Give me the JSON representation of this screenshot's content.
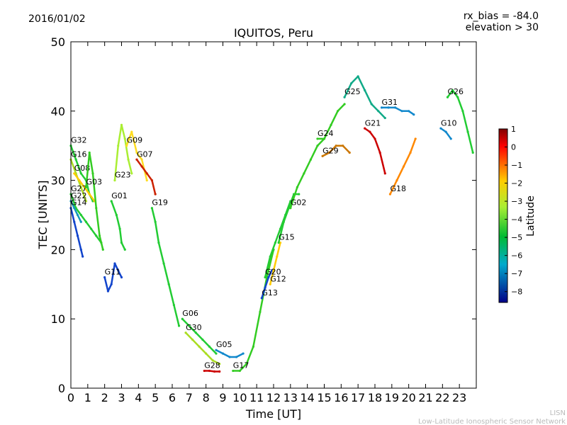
{
  "header": {
    "date": "2016/01/02",
    "bias": "rx_bias = -84.0",
    "elevation": "elevation > 30"
  },
  "footer": {
    "line1": "LISN",
    "line2": "Low-Latitude Ionospheric Sensor Network"
  },
  "chart_data": {
    "type": "scatter",
    "title": "IQUITOS, Peru",
    "xlabel": "Time [UT]",
    "ylabel": "TEC [UNITS]",
    "xlim": [
      0,
      24
    ],
    "ylim": [
      0,
      50
    ],
    "xticks": [
      "0",
      "1",
      "2",
      "3",
      "4",
      "5",
      "6",
      "7",
      "8",
      "9",
      "10",
      "11",
      "12",
      "13",
      "14",
      "15",
      "16",
      "17",
      "18",
      "19",
      "20",
      "21",
      "22",
      "23"
    ],
    "yticks": [
      "0",
      "10",
      "20",
      "30",
      "40",
      "50"
    ],
    "grid": false,
    "colorbar": {
      "label": "Latitude",
      "range": [
        -8.6,
        1
      ],
      "ticks": [
        "1",
        "0",
        "−1",
        "−2",
        "−3",
        "−4",
        "−5",
        "−6",
        "−7",
        "−8"
      ]
    },
    "series": [
      {
        "name": "G32",
        "color": "#22cc33",
        "x": [
          0.0,
          0.3,
          0.6,
          0.9,
          1.1,
          1.3
        ],
        "y": [
          35,
          33,
          31,
          30,
          28,
          27
        ]
      },
      {
        "name": "G16",
        "color": "#aadd22",
        "x": [
          0.0,
          0.3,
          0.6,
          0.9
        ],
        "y": [
          33,
          31,
          29,
          27
        ]
      },
      {
        "name": "G08",
        "color": "#ffcc00",
        "x": [
          0.2,
          0.5,
          0.8,
          1.1,
          1.4
        ],
        "y": [
          31,
          30,
          29,
          28,
          27
        ]
      },
      {
        "name": "G27",
        "color": "#22cc33",
        "x": [
          0.0,
          0.3,
          0.6,
          0.9,
          1.2,
          1.5,
          1.8
        ],
        "y": [
          28,
          26,
          25,
          24,
          23,
          22,
          21
        ]
      },
      {
        "name": "G22",
        "color": "#1199bb",
        "x": [
          0.0,
          0.2,
          0.4,
          0.6
        ],
        "y": [
          27,
          26,
          25,
          24
        ]
      },
      {
        "name": "G03",
        "color": "#33cc22",
        "x": [
          0.9,
          1.1,
          1.3,
          1.5,
          1.7,
          1.9
        ],
        "y": [
          29,
          34,
          31,
          26,
          22,
          20
        ]
      },
      {
        "name": "G14",
        "color": "#1144cc",
        "x": [
          0.0,
          0.2,
          0.4,
          0.6,
          0.7
        ],
        "y": [
          26,
          24,
          22,
          20,
          19
        ]
      },
      {
        "name": "G23",
        "color": "#aaee33",
        "x": [
          2.6,
          2.8,
          3.0,
          3.2,
          3.4,
          3.6
        ],
        "y": [
          30,
          35,
          38,
          36,
          33,
          31
        ]
      },
      {
        "name": "G09",
        "color": "#ffdd22",
        "x": [
          3.3,
          3.6,
          3.9,
          4.2,
          4.5
        ],
        "y": [
          35,
          37,
          34,
          33,
          30
        ]
      },
      {
        "name": "G07",
        "color": "#cc2200",
        "x": [
          3.9,
          4.2,
          4.5,
          4.8,
          5.0
        ],
        "y": [
          33,
          32,
          31,
          30,
          28
        ]
      },
      {
        "name": "G01",
        "color": "#22cc33",
        "x": [
          2.4,
          2.7,
          2.9,
          3.0,
          3.2
        ],
        "y": [
          27,
          25,
          23,
          21,
          20
        ]
      },
      {
        "name": "G11",
        "color": "#1144cc",
        "x": [
          2.0,
          2.2,
          2.4,
          2.6,
          2.8,
          3.0
        ],
        "y": [
          16,
          14,
          15,
          18,
          17,
          16
        ]
      },
      {
        "name": "G19",
        "color": "#22cc33",
        "x": [
          4.8,
          5.0,
          5.2,
          5.5,
          5.8,
          6.1,
          6.4
        ],
        "y": [
          26,
          24,
          21,
          18,
          15,
          12,
          9
        ]
      },
      {
        "name": "G06",
        "color": "#22cc33",
        "x": [
          6.6,
          7.0,
          7.4,
          7.8,
          8.2,
          8.6
        ],
        "y": [
          10,
          9,
          8,
          7,
          6,
          5
        ]
      },
      {
        "name": "G30",
        "color": "#aadd22",
        "x": [
          6.8,
          7.2,
          7.6,
          8.0,
          8.4,
          8.8
        ],
        "y": [
          8,
          7,
          6,
          5,
          4,
          3.5
        ]
      },
      {
        "name": "G28",
        "color": "#cc0000",
        "x": [
          7.9,
          8.2,
          8.5,
          8.8
        ],
        "y": [
          2.5,
          2.5,
          2.4,
          2.4
        ]
      },
      {
        "name": "G05",
        "color": "#1188cc",
        "x": [
          8.6,
          9.0,
          9.4,
          9.8,
          10.2
        ],
        "y": [
          5.5,
          5,
          4.5,
          4.5,
          5
        ]
      },
      {
        "name": "G17",
        "color": "#33cc22",
        "x": [
          9.6,
          10.0,
          10.4,
          10.8,
          11.2,
          11.6,
          12.0
        ],
        "y": [
          2.5,
          2.5,
          3.5,
          6,
          11,
          16,
          20
        ]
      },
      {
        "name": "G13",
        "color": "#1144cc",
        "x": [
          11.3,
          11.5,
          11.7,
          11.9
        ],
        "y": [
          13,
          14.5,
          16,
          17
        ]
      },
      {
        "name": "G12",
        "color": "#ffcc00",
        "x": [
          11.8,
          12.0,
          12.2,
          12.4
        ],
        "y": [
          15,
          17,
          19,
          21
        ]
      },
      {
        "name": "G20",
        "color": "#22cc33",
        "x": [
          11.5,
          11.8,
          12.1,
          12.4,
          12.7,
          13.0
        ],
        "y": [
          16,
          19,
          21,
          23,
          25,
          27
        ]
      },
      {
        "name": "G15",
        "color": "#22cc33",
        "x": [
          12.3,
          12.6,
          12.9,
          13.2,
          13.5
        ],
        "y": [
          21,
          24,
          26,
          28,
          28
        ]
      },
      {
        "name": "G02",
        "color": "#33cc22",
        "x": [
          13.0,
          13.4,
          13.8,
          14.2,
          14.6,
          15.0
        ],
        "y": [
          26,
          29,
          31,
          33,
          35,
          36
        ]
      },
      {
        "name": "G24",
        "color": "#33cc22",
        "x": [
          14.6,
          15.0,
          15.4,
          15.8,
          16.2
        ],
        "y": [
          36,
          36,
          38,
          40,
          41
        ]
      },
      {
        "name": "G29",
        "color": "#cc7700",
        "x": [
          14.9,
          15.3,
          15.7,
          16.1,
          16.5
        ],
        "y": [
          33.5,
          34,
          35,
          35,
          34
        ]
      },
      {
        "name": "G21",
        "color": "#cc0000",
        "x": [
          17.4,
          17.7,
          18.0,
          18.3,
          18.6
        ],
        "y": [
          37.5,
          37,
          36,
          34,
          31
        ]
      },
      {
        "name": "G25",
        "color": "#11aa88",
        "x": [
          16.2,
          16.6,
          17.0,
          17.4,
          17.8,
          18.2,
          18.6
        ],
        "y": [
          42,
          44,
          45,
          43,
          41,
          40,
          39
        ]
      },
      {
        "name": "G31",
        "color": "#1188cc",
        "x": [
          18.4,
          18.8,
          19.2,
          19.6,
          20.0,
          20.3
        ],
        "y": [
          40.5,
          40.5,
          40.5,
          40,
          40,
          39.5
        ]
      },
      {
        "name": "G18",
        "color": "#ff8800",
        "x": [
          18.9,
          19.3,
          19.7,
          20.1,
          20.4
        ],
        "y": [
          28,
          30,
          32,
          34,
          36
        ]
      },
      {
        "name": "G10",
        "color": "#1188cc",
        "x": [
          21.9,
          22.2,
          22.5
        ],
        "y": [
          37.5,
          37,
          36
        ]
      },
      {
        "name": "G26",
        "color": "#22cc33",
        "x": [
          22.3,
          22.6,
          22.9,
          23.2,
          23.5,
          23.8
        ],
        "y": [
          42,
          43,
          42,
          40,
          37,
          34
        ]
      }
    ]
  }
}
